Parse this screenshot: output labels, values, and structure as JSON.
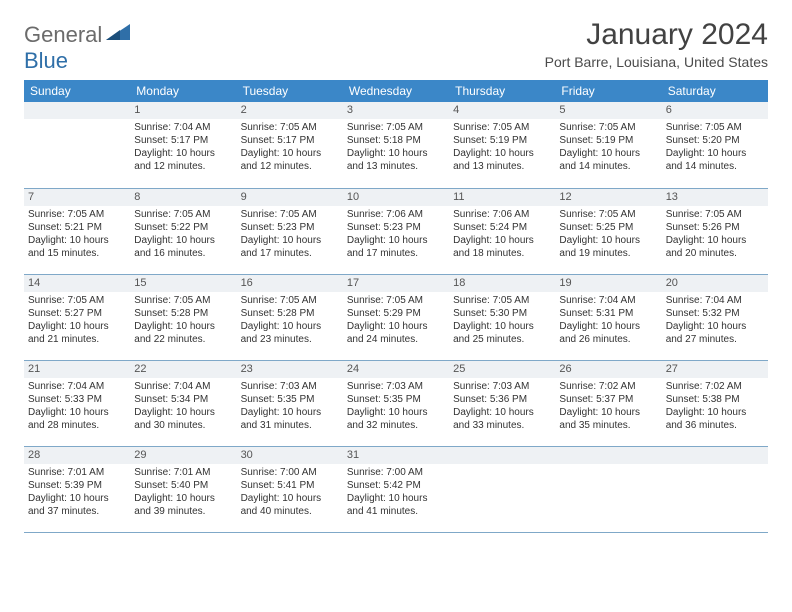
{
  "logo": {
    "text1": "General",
    "text2": "Blue"
  },
  "title": "January 2024",
  "location": "Port Barre, Louisiana, United States",
  "colors": {
    "header_bg": "#3b87c8",
    "header_fg": "#ffffff",
    "daynum_bg": "#eef1f4",
    "border": "#7fa8c8",
    "logo_gray": "#6b6b6b",
    "logo_blue": "#2f6fa8"
  },
  "dayNames": [
    "Sunday",
    "Monday",
    "Tuesday",
    "Wednesday",
    "Thursday",
    "Friday",
    "Saturday"
  ],
  "leadingBlanks": 1,
  "days": [
    {
      "n": 1,
      "sunrise": "7:04 AM",
      "sunset": "5:17 PM",
      "daylight": "10 hours and 12 minutes."
    },
    {
      "n": 2,
      "sunrise": "7:05 AM",
      "sunset": "5:17 PM",
      "daylight": "10 hours and 12 minutes."
    },
    {
      "n": 3,
      "sunrise": "7:05 AM",
      "sunset": "5:18 PM",
      "daylight": "10 hours and 13 minutes."
    },
    {
      "n": 4,
      "sunrise": "7:05 AM",
      "sunset": "5:19 PM",
      "daylight": "10 hours and 13 minutes."
    },
    {
      "n": 5,
      "sunrise": "7:05 AM",
      "sunset": "5:19 PM",
      "daylight": "10 hours and 14 minutes."
    },
    {
      "n": 6,
      "sunrise": "7:05 AM",
      "sunset": "5:20 PM",
      "daylight": "10 hours and 14 minutes."
    },
    {
      "n": 7,
      "sunrise": "7:05 AM",
      "sunset": "5:21 PM",
      "daylight": "10 hours and 15 minutes."
    },
    {
      "n": 8,
      "sunrise": "7:05 AM",
      "sunset": "5:22 PM",
      "daylight": "10 hours and 16 minutes."
    },
    {
      "n": 9,
      "sunrise": "7:05 AM",
      "sunset": "5:23 PM",
      "daylight": "10 hours and 17 minutes."
    },
    {
      "n": 10,
      "sunrise": "7:06 AM",
      "sunset": "5:23 PM",
      "daylight": "10 hours and 17 minutes."
    },
    {
      "n": 11,
      "sunrise": "7:06 AM",
      "sunset": "5:24 PM",
      "daylight": "10 hours and 18 minutes."
    },
    {
      "n": 12,
      "sunrise": "7:05 AM",
      "sunset": "5:25 PM",
      "daylight": "10 hours and 19 minutes."
    },
    {
      "n": 13,
      "sunrise": "7:05 AM",
      "sunset": "5:26 PM",
      "daylight": "10 hours and 20 minutes."
    },
    {
      "n": 14,
      "sunrise": "7:05 AM",
      "sunset": "5:27 PM",
      "daylight": "10 hours and 21 minutes."
    },
    {
      "n": 15,
      "sunrise": "7:05 AM",
      "sunset": "5:28 PM",
      "daylight": "10 hours and 22 minutes."
    },
    {
      "n": 16,
      "sunrise": "7:05 AM",
      "sunset": "5:28 PM",
      "daylight": "10 hours and 23 minutes."
    },
    {
      "n": 17,
      "sunrise": "7:05 AM",
      "sunset": "5:29 PM",
      "daylight": "10 hours and 24 minutes."
    },
    {
      "n": 18,
      "sunrise": "7:05 AM",
      "sunset": "5:30 PM",
      "daylight": "10 hours and 25 minutes."
    },
    {
      "n": 19,
      "sunrise": "7:04 AM",
      "sunset": "5:31 PM",
      "daylight": "10 hours and 26 minutes."
    },
    {
      "n": 20,
      "sunrise": "7:04 AM",
      "sunset": "5:32 PM",
      "daylight": "10 hours and 27 minutes."
    },
    {
      "n": 21,
      "sunrise": "7:04 AM",
      "sunset": "5:33 PM",
      "daylight": "10 hours and 28 minutes."
    },
    {
      "n": 22,
      "sunrise": "7:04 AM",
      "sunset": "5:34 PM",
      "daylight": "10 hours and 30 minutes."
    },
    {
      "n": 23,
      "sunrise": "7:03 AM",
      "sunset": "5:35 PM",
      "daylight": "10 hours and 31 minutes."
    },
    {
      "n": 24,
      "sunrise": "7:03 AM",
      "sunset": "5:35 PM",
      "daylight": "10 hours and 32 minutes."
    },
    {
      "n": 25,
      "sunrise": "7:03 AM",
      "sunset": "5:36 PM",
      "daylight": "10 hours and 33 minutes."
    },
    {
      "n": 26,
      "sunrise": "7:02 AM",
      "sunset": "5:37 PM",
      "daylight": "10 hours and 35 minutes."
    },
    {
      "n": 27,
      "sunrise": "7:02 AM",
      "sunset": "5:38 PM",
      "daylight": "10 hours and 36 minutes."
    },
    {
      "n": 28,
      "sunrise": "7:01 AM",
      "sunset": "5:39 PM",
      "daylight": "10 hours and 37 minutes."
    },
    {
      "n": 29,
      "sunrise": "7:01 AM",
      "sunset": "5:40 PM",
      "daylight": "10 hours and 39 minutes."
    },
    {
      "n": 30,
      "sunrise": "7:00 AM",
      "sunset": "5:41 PM",
      "daylight": "10 hours and 40 minutes."
    },
    {
      "n": 31,
      "sunrise": "7:00 AM",
      "sunset": "5:42 PM",
      "daylight": "10 hours and 41 minutes."
    }
  ],
  "labels": {
    "sunrise": "Sunrise:",
    "sunset": "Sunset:",
    "daylight": "Daylight:"
  }
}
